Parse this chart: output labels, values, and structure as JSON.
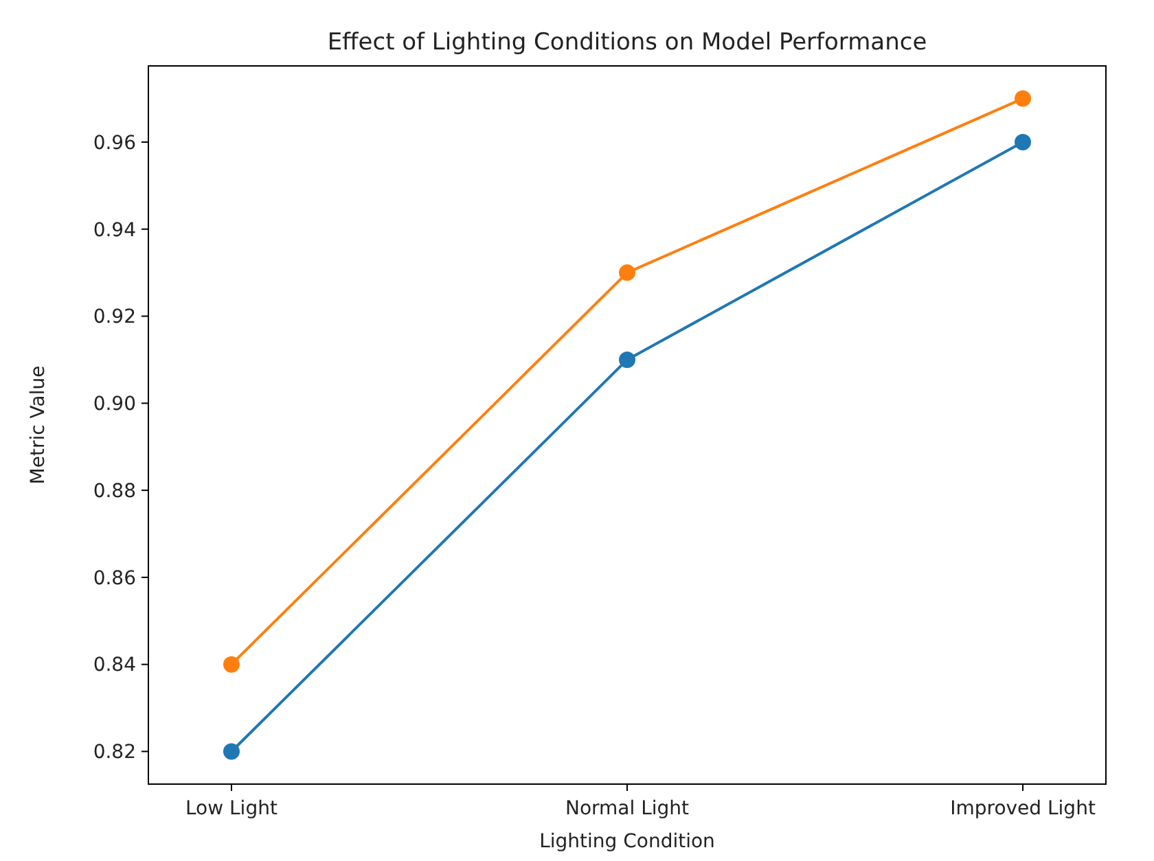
{
  "chart_data": {
    "type": "line",
    "title": "Effect of Lighting Conditions on Model Performance",
    "xlabel": "Lighting Condition",
    "ylabel": "Metric Value",
    "categories": [
      "Low Light",
      "Normal Light",
      "Improved Light"
    ],
    "series": [
      {
        "color": "#1f77b4",
        "values": [
          0.82,
          0.91,
          0.96
        ]
      },
      {
        "color": "#ff7f0e",
        "values": [
          0.84,
          0.93,
          0.97
        ]
      }
    ],
    "ylim": [
      0.8125,
      0.9775
    ],
    "yticks": [
      {
        "value": 0.82,
        "label": "0.82"
      },
      {
        "value": 0.84,
        "label": "0.84"
      },
      {
        "value": 0.86,
        "label": "0.86"
      },
      {
        "value": 0.88,
        "label": "0.88"
      },
      {
        "value": 0.9,
        "label": "0.90"
      },
      {
        "value": 0.92,
        "label": "0.92"
      },
      {
        "value": 0.94,
        "label": "0.94"
      },
      {
        "value": 0.96,
        "label": "0.96"
      }
    ],
    "marker": "circle",
    "line_style": "solid",
    "grid": false
  }
}
